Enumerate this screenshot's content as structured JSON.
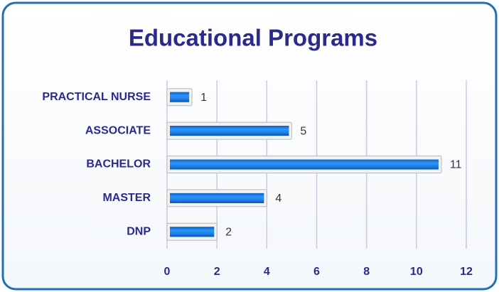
{
  "chart_data": {
    "type": "bar",
    "orientation": "horizontal",
    "title": "Educational Programs",
    "categories": [
      "PRACTICAL NURSE",
      "ASSOCIATE",
      "BACHELOR",
      "MASTER",
      "DNP"
    ],
    "values": [
      1,
      5,
      11,
      4,
      2
    ],
    "color": "#1e7fe0",
    "xlim": [
      0,
      12
    ],
    "xticks": [
      0,
      2,
      4,
      6,
      8,
      10,
      12
    ],
    "grid": true
  }
}
